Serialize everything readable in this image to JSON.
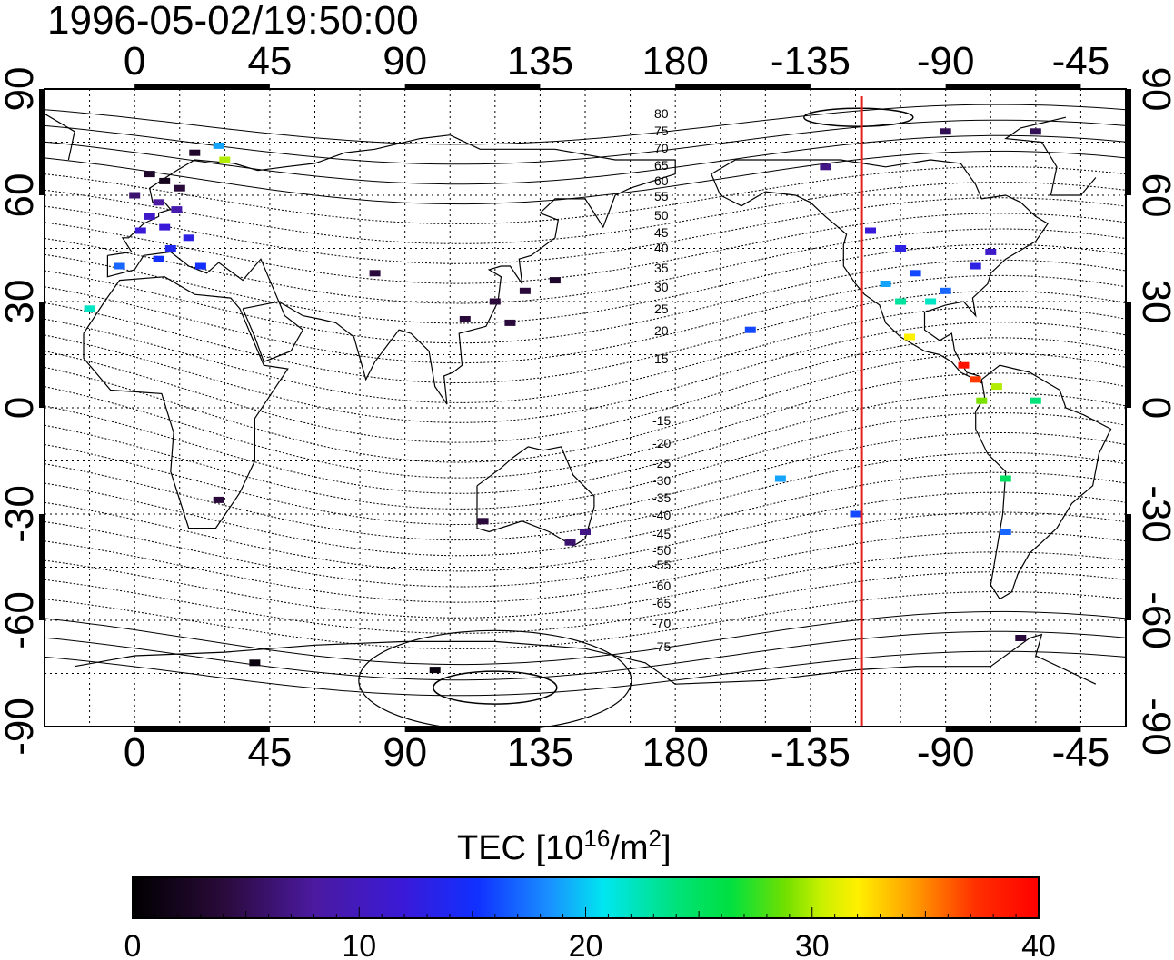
{
  "title": "1996-05-02/19:50:00",
  "map": {
    "lon_range": [
      -30,
      330
    ],
    "lat_range": [
      -90,
      90
    ],
    "lon_ticks": [
      0,
      45,
      90,
      135,
      180,
      225,
      270,
      315
    ],
    "lon_tick_labels": [
      "0",
      "45",
      "90",
      "135",
      "180",
      "-135",
      "-90",
      "-45"
    ],
    "lat_ticks": [
      90,
      60,
      30,
      0,
      -30,
      -60,
      -90
    ],
    "lat_tick_labels": [
      "90",
      "60",
      "30",
      "0",
      "-30",
      "-60",
      "-90"
    ],
    "grid": "dotted",
    "magnetic_latitude_labels_north": [
      "80",
      "75",
      "70",
      "65",
      "60",
      "55",
      "50",
      "45",
      "40",
      "35",
      "30",
      "25",
      "20",
      "15"
    ],
    "magnetic_latitude_labels_south": [
      "-15",
      "-20",
      "-25",
      "-30",
      "-35",
      "-40",
      "-45",
      "-50",
      "-55",
      "-60",
      "-65",
      "-70",
      "-75"
    ],
    "terminator_longitude": -118,
    "terminator_color": "#e8201c"
  },
  "colorbar": {
    "title": "TEC  [10",
    "title_sup": "16",
    "title_mid": "/m",
    "title_sup2": "2",
    "title_end": "]",
    "min": 0,
    "max": 40,
    "tick_values": [
      0,
      10,
      20,
      30,
      40
    ],
    "tick_labels": [
      "0",
      "10",
      "20",
      "30",
      "40"
    ]
  },
  "chart_data": {
    "type": "heatmap",
    "title": "1996-05-02/19:50:00",
    "value_label": "TEC [10^16/m^2]",
    "value_range": [
      0,
      40
    ],
    "points": [
      {
        "lon": 5,
        "lat": 66,
        "tec": 3
      },
      {
        "lon": 10,
        "lat": 64,
        "tec": 2
      },
      {
        "lon": 15,
        "lat": 62,
        "tec": 4
      },
      {
        "lon": 0,
        "lat": 60,
        "tec": 6
      },
      {
        "lon": 8,
        "lat": 58,
        "tec": 8
      },
      {
        "lon": 14,
        "lat": 56,
        "tec": 9
      },
      {
        "lon": 5,
        "lat": 54,
        "tec": 11
      },
      {
        "lon": 10,
        "lat": 51,
        "tec": 12
      },
      {
        "lon": 2,
        "lat": 50,
        "tec": 12
      },
      {
        "lon": 18,
        "lat": 48,
        "tec": 13
      },
      {
        "lon": 12,
        "lat": 45,
        "tec": 14
      },
      {
        "lon": 8,
        "lat": 42,
        "tec": 15
      },
      {
        "lon": 22,
        "lat": 40,
        "tec": 15
      },
      {
        "lon": -5,
        "lat": 40,
        "tec": 17
      },
      {
        "lon": -15,
        "lat": 28,
        "tec": 22
      },
      {
        "lon": 20,
        "lat": 72,
        "tec": 3
      },
      {
        "lon": 30,
        "lat": 70,
        "tec": 30
      },
      {
        "lon": 28,
        "lat": 74,
        "tec": 19
      },
      {
        "lon": 130,
        "lat": 33,
        "tec": 4
      },
      {
        "lon": 140,
        "lat": 36,
        "tec": 3
      },
      {
        "lon": 120,
        "lat": 30,
        "tec": 4
      },
      {
        "lon": 125,
        "lat": 24,
        "tec": 4
      },
      {
        "lon": 80,
        "lat": 38,
        "tec": 4
      },
      {
        "lon": 110,
        "lat": 25,
        "tec": 4
      },
      {
        "lon": 150,
        "lat": -35,
        "tec": 7
      },
      {
        "lon": 145,
        "lat": -38,
        "tec": 6
      },
      {
        "lon": 116,
        "lat": -32,
        "tec": 4
      },
      {
        "lon": 28,
        "lat": -26,
        "tec": 4
      },
      {
        "lon": 40,
        "lat": -72,
        "tec": 1
      },
      {
        "lon": 100,
        "lat": -74,
        "tec": 1
      },
      {
        "lon": 245,
        "lat": 50,
        "tec": 12
      },
      {
        "lon": 255,
        "lat": 45,
        "tec": 13
      },
      {
        "lon": 260,
        "lat": 38,
        "tec": 16
      },
      {
        "lon": 250,
        "lat": 35,
        "tec": 19
      },
      {
        "lon": 255,
        "lat": 30,
        "tec": 23
      },
      {
        "lon": 265,
        "lat": 30,
        "tec": 22
      },
      {
        "lon": 270,
        "lat": 33,
        "tec": 17
      },
      {
        "lon": 280,
        "lat": 40,
        "tec": 13
      },
      {
        "lon": 285,
        "lat": 44,
        "tec": 11
      },
      {
        "lon": 258,
        "lat": 20,
        "tec": 32
      },
      {
        "lon": 276,
        "lat": 12,
        "tec": 39
      },
      {
        "lon": 280,
        "lat": 8,
        "tec": 37
      },
      {
        "lon": 287,
        "lat": 6,
        "tec": 30
      },
      {
        "lon": 282,
        "lat": 2,
        "tec": 29
      },
      {
        "lon": 300,
        "lat": 2,
        "tec": 24
      },
      {
        "lon": 290,
        "lat": -20,
        "tec": 25
      },
      {
        "lon": 290,
        "lat": -35,
        "tec": 17
      },
      {
        "lon": 295,
        "lat": -65,
        "tec": 4
      },
      {
        "lon": 215,
        "lat": -20,
        "tec": 19
      },
      {
        "lon": 240,
        "lat": -30,
        "tec": 16
      },
      {
        "lon": 205,
        "lat": 22,
        "tec": 16
      },
      {
        "lon": 230,
        "lat": 68,
        "tec": 7
      },
      {
        "lon": 270,
        "lat": 78,
        "tec": 5
      },
      {
        "lon": 300,
        "lat": 78,
        "tec": 5
      }
    ]
  }
}
